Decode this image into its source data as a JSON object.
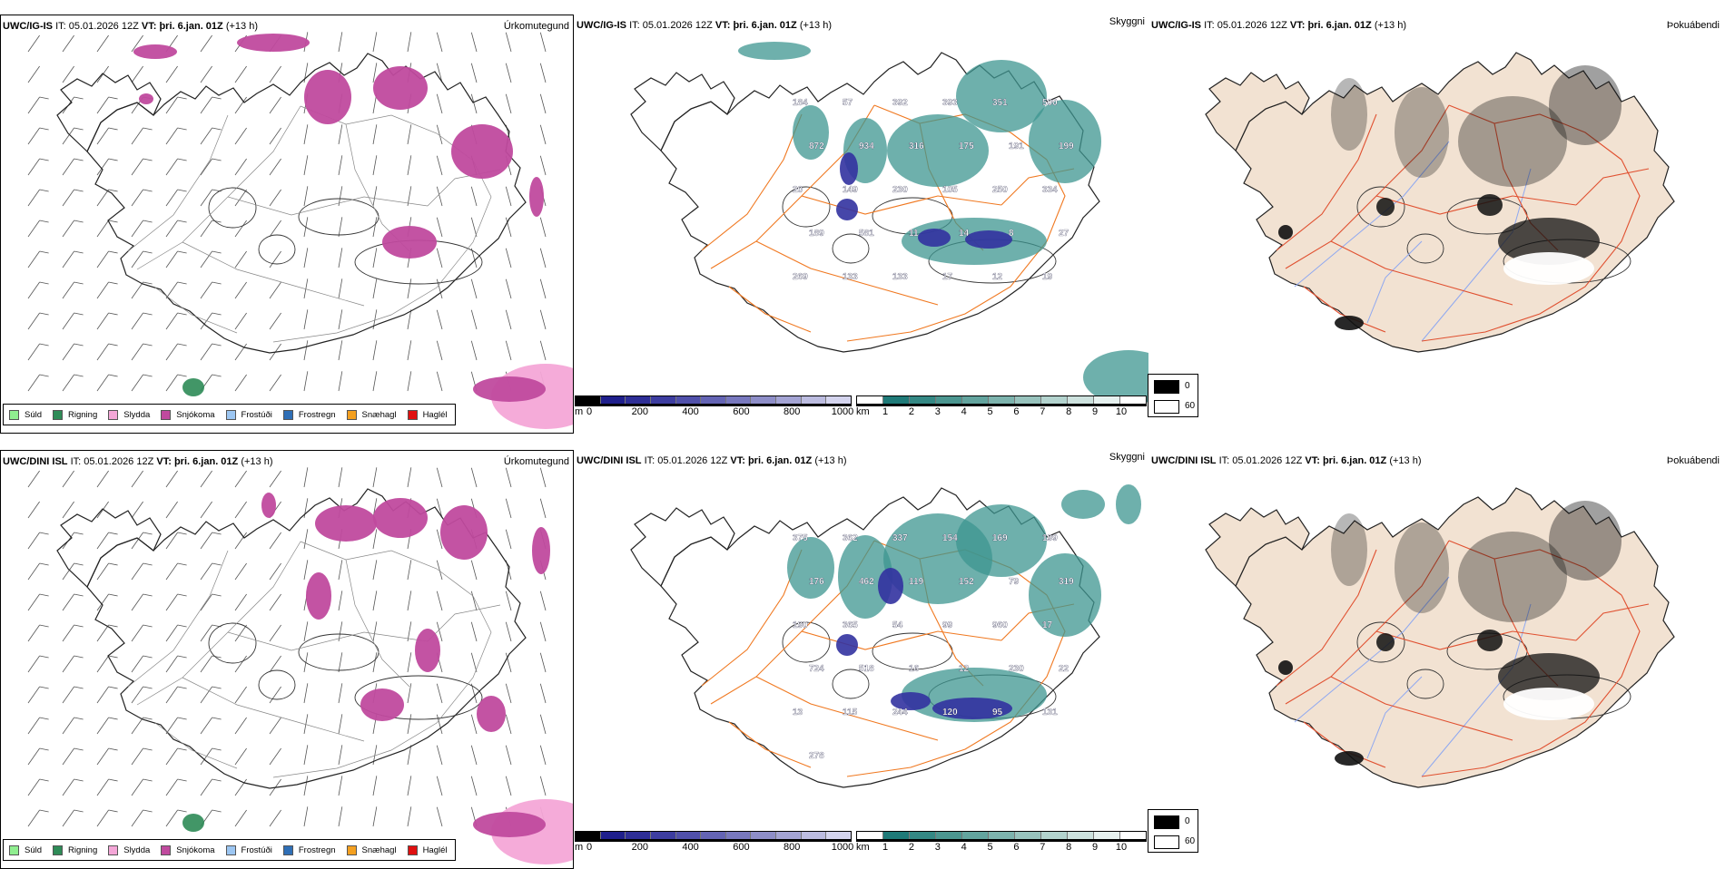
{
  "rows": [
    {
      "model": "UWC/IG-IS",
      "it_label": "IT:",
      "it_value": "05.01.2026 12Z",
      "vt_label": "VT:",
      "vt_value": "þri. 6.jan. 01Z",
      "lead": "(+13 h)",
      "panels": {
        "precip_title": "Úrkomutegund",
        "visibility_title": "Skyggni",
        "fog_title": "Þokuábendi"
      },
      "cloud_base_labels": [
        "184",
        "57",
        "392",
        "393",
        "351",
        "500",
        "872",
        "934",
        "316",
        "175",
        "191",
        "199",
        "20",
        "149",
        "230",
        "105",
        "250",
        "334",
        "189",
        "581",
        "11",
        "14",
        "8",
        "27",
        "269",
        "133",
        "133",
        "17",
        "12",
        "19"
      ]
    },
    {
      "model": "UWC/DINI ISL",
      "it_label": "IT:",
      "it_value": "05.01.2026 12Z",
      "vt_label": "VT:",
      "vt_value": "þri. 6.jan. 01Z",
      "lead": "(+13 h)",
      "panels": {
        "precip_title": "Úrkomutegund",
        "visibility_title": "Skyggni",
        "fog_title": "Þokuábendi"
      },
      "cloud_base_labels": [
        "375",
        "362",
        "337",
        "154",
        "169",
        "199",
        "176",
        "462",
        "119",
        "152",
        "79",
        "319",
        "190",
        "365",
        "54",
        "99",
        "960",
        "17",
        "724",
        "518",
        "16",
        "12",
        "230",
        "22",
        "13",
        "115",
        "244",
        "120",
        "95",
        "131",
        "278"
      ]
    }
  ],
  "precip_legend": [
    {
      "label": "Súld",
      "color": "#90ee90"
    },
    {
      "label": "Rigning",
      "color": "#2e8b57"
    },
    {
      "label": "Slydda",
      "color": "#f4a6d7"
    },
    {
      "label": "Snjókoma",
      "color": "#c04a9e"
    },
    {
      "label": "Frostúði",
      "color": "#9cc6f2"
    },
    {
      "label": "Frostregn",
      "color": "#2f6fb6"
    },
    {
      "label": "Snæhagl",
      "color": "#f4a020"
    },
    {
      "label": "Haglél",
      "color": "#e01010"
    }
  ],
  "cloud_base_colorbar": {
    "unit": "m",
    "ticks": [
      "0",
      "200",
      "400",
      "600",
      "800",
      "1000"
    ],
    "colors": [
      "#000000",
      "#1f1f8c",
      "#2e2e96",
      "#3d3da0",
      "#5050aa",
      "#6464b4",
      "#7878be",
      "#8e8ec8",
      "#a4a4d4",
      "#bcbce0",
      "#d4d4ee"
    ]
  },
  "visibility_colorbar": {
    "unit": "km",
    "ticks": [
      "1",
      "2",
      "3",
      "4",
      "5",
      "6",
      "7",
      "8",
      "9",
      "10"
    ],
    "colors": [
      "#ffffff",
      "#1f7a78",
      "#348884",
      "#4b9690",
      "#63a49e",
      "#7db3ad",
      "#98c3bd",
      "#b3d3ce",
      "#cde2de",
      "#e6f1ef",
      "#ffffff"
    ]
  },
  "fog_legend": [
    {
      "label": "0",
      "color": "#000000"
    },
    {
      "label": "60",
      "color": "#ffffff"
    }
  ],
  "colors": {
    "snow": "#c04a9e",
    "sleet": "#f4a6d7",
    "rain": "#2e8b57",
    "teal": "#3d9690",
    "cloudbase": "#3232a0",
    "road": "#f07820",
    "river": "#8fa8f0",
    "land_fog": "#f2e2d2",
    "coast": "#222222"
  }
}
